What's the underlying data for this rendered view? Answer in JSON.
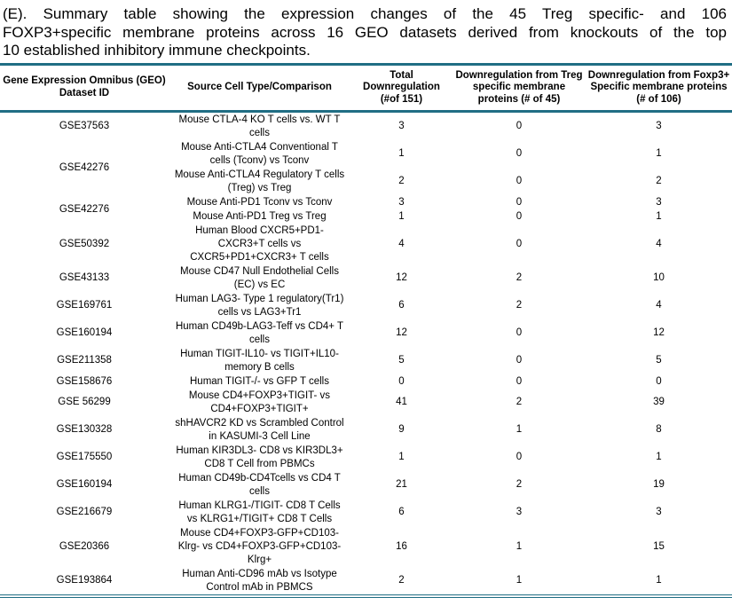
{
  "colors": {
    "table_border": "#206e84",
    "text": "#000000"
  },
  "caption": {
    "lines": [
      "(E). Summary table showing the expression changes of the 45 Treg specific- and 106",
      "FOXP3+specific membrane proteins across 16 GEO datasets derived from knockouts of the top",
      "10 established inhibitory immune checkpoints."
    ]
  },
  "table": {
    "headers": [
      "Gene Expression Omnibus (GEO) Dataset ID",
      "Source Cell Type/Comparison",
      "Total Downregulation (#of 151)",
      "Downregulation from Treg specific membrane proteins (# of 45)",
      "Downregulation from Foxp3+ Specific membrane proteins (# of 106)"
    ],
    "rows": [
      {
        "id": "GSE37563",
        "source": "Mouse CTLA-4 KO T cells vs. WT T cells",
        "total": "3",
        "treg": "0",
        "foxp3": "3"
      },
      {
        "id": "GSE42276",
        "source": "Mouse Anti-CTLA4 Conventional T cells (Tconv) vs Tconv",
        "total": "1",
        "treg": "0",
        "foxp3": "1"
      },
      {
        "source": "Mouse Anti-CTLA4 Regulatory T cells (Treg) vs Treg",
        "total": "2",
        "treg": "0",
        "foxp3": "2"
      },
      {
        "id": "GSE42276",
        "source": "Mouse Anti-PD1 Tconv vs Tconv",
        "total": "3",
        "treg": "0",
        "foxp3": "3"
      },
      {
        "source": "Mouse Anti-PD1 Treg vs Treg",
        "total": "1",
        "treg": "0",
        "foxp3": "1"
      },
      {
        "id": "GSE50392",
        "source": "Human Blood CXCR5+PD1-CXCR3+T cells vs CXCR5+PD1+CXCR3+ T cells",
        "total": "4",
        "treg": "0",
        "foxp3": "4"
      },
      {
        "id": "GSE43133",
        "source": "Mouse CD47 Null Endothelial Cells (EC) vs EC",
        "total": "12",
        "treg": "2",
        "foxp3": "10"
      },
      {
        "id": "GSE169761",
        "source": "Human LAG3- Type 1 regulatory(Tr1) cells vs LAG3+Tr1",
        "total": "6",
        "treg": "2",
        "foxp3": "4"
      },
      {
        "id": "GSE160194",
        "source": "Human CD49b-LAG3-Teff vs CD4+ T cells",
        "total": "12",
        "treg": "0",
        "foxp3": "12"
      },
      {
        "id": "GSE211358",
        "source": "Human TIGIT-IL10- vs TIGIT+IL10- memory B cells",
        "total": "5",
        "treg": "0",
        "foxp3": "5"
      },
      {
        "id": "GSE158676",
        "source": "Human TIGIT-/- vs GFP T cells",
        "total": "0",
        "treg": "0",
        "foxp3": "0"
      },
      {
        "id": "GSE 56299",
        "source": "Mouse CD4+FOXP3+TIGIT- vs CD4+FOXP3+TIGIT+",
        "total": "41",
        "treg": "2",
        "foxp3": "39"
      },
      {
        "id": "GSE130328",
        "source": "shHAVCR2 KD vs Scrambled Control in KASUMI-3 Cell Line",
        "total": "9",
        "treg": "1",
        "foxp3": "8"
      },
      {
        "id": "GSE175550",
        "source": "Human KIR3DL3- CD8 vs KIR3DL3+ CD8 T Cell from PBMCs",
        "total": "1",
        "treg": "0",
        "foxp3": "1"
      },
      {
        "id": "GSE160194",
        "source": "Human CD49b-CD4Tcells vs CD4 T cells",
        "total": "21",
        "treg": "2",
        "foxp3": "19"
      },
      {
        "id": "GSE216679",
        "source": "Human KLRG1-/TIGIT- CD8 T Cells vs KLRG1+/TIGIT+ CD8 T Cells",
        "total": "6",
        "treg": "3",
        "foxp3": "3"
      },
      {
        "id": "GSE20366",
        "source": "Mouse CD4+FOXP3-GFP+CD103-Klrg- vs CD4+FOXP3-GFP+CD103-Klrg+",
        "total": "16",
        "treg": "1",
        "foxp3": "15"
      },
      {
        "id": "GSE193864",
        "source": "Human Anti-CD96 mAb vs Isotype Control mAb in PBMCS",
        "total": "2",
        "treg": "1",
        "foxp3": "1"
      }
    ]
  }
}
